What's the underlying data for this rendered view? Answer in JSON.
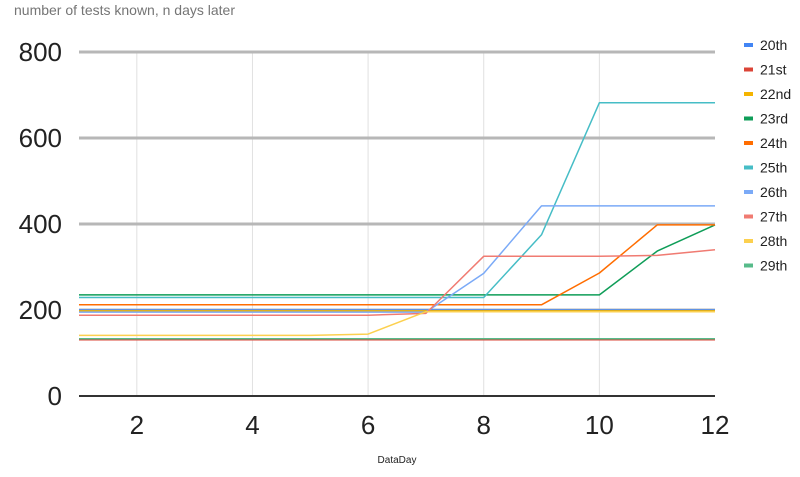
{
  "chart_data": {
    "type": "line",
    "title": "number of tests known, n days later",
    "xlabel": "DataDay",
    "ylabel": "",
    "xlim": [
      1,
      12
    ],
    "ylim": [
      0,
      800
    ],
    "x_ticks": [
      2,
      4,
      6,
      8,
      10,
      12
    ],
    "y_ticks": [
      0,
      200,
      400,
      600,
      800
    ],
    "grid": true,
    "legend_position": "right",
    "x": [
      1,
      2,
      3,
      4,
      5,
      6,
      7,
      8,
      9,
      10,
      11,
      12
    ],
    "series": [
      {
        "name": "20th",
        "color": "#4285f4",
        "values": [
          200,
          200,
          200,
          200,
          200,
          200,
          200,
          200,
          200,
          200,
          200,
          200
        ]
      },
      {
        "name": "21st",
        "color": "#db4437",
        "values": [
          131,
          131,
          131,
          131,
          131,
          131,
          131,
          131,
          131,
          131,
          131,
          131
        ]
      },
      {
        "name": "22nd",
        "color": "#f4b400",
        "values": [
          198,
          198,
          198,
          198,
          198,
          198,
          198,
          198,
          198,
          198,
          198,
          198
        ]
      },
      {
        "name": "23rd",
        "color": "#0f9d58",
        "values": [
          235,
          235,
          235,
          235,
          235,
          235,
          235,
          235,
          235,
          235,
          337,
          398
        ]
      },
      {
        "name": "24th",
        "color": "#ff6d00",
        "values": [
          212,
          212,
          212,
          212,
          212,
          212,
          212,
          212,
          212,
          286,
          398,
          398
        ]
      },
      {
        "name": "25th",
        "color": "#46bdc6",
        "values": [
          229,
          229,
          229,
          229,
          229,
          229,
          229,
          229,
          375,
          682,
          682,
          682
        ]
      },
      {
        "name": "26th",
        "color": "#7baaf7",
        "values": [
          195,
          195,
          195,
          195,
          195,
          195,
          195,
          285,
          442,
          442,
          442,
          442
        ]
      },
      {
        "name": "27th",
        "color": "#f07b72",
        "values": [
          188,
          188,
          188,
          188,
          188,
          188,
          192,
          325,
          325,
          325,
          327,
          340
        ]
      },
      {
        "name": "28th",
        "color": "#fcd04f",
        "values": [
          141,
          141,
          141,
          141,
          141,
          144,
          196,
          196,
          196,
          196,
          196,
          196
        ]
      },
      {
        "name": "29th",
        "color": "#57bb8a",
        "values": [
          133,
          133,
          133,
          133,
          133,
          133,
          133,
          133,
          133,
          133,
          133,
          133
        ]
      }
    ]
  }
}
